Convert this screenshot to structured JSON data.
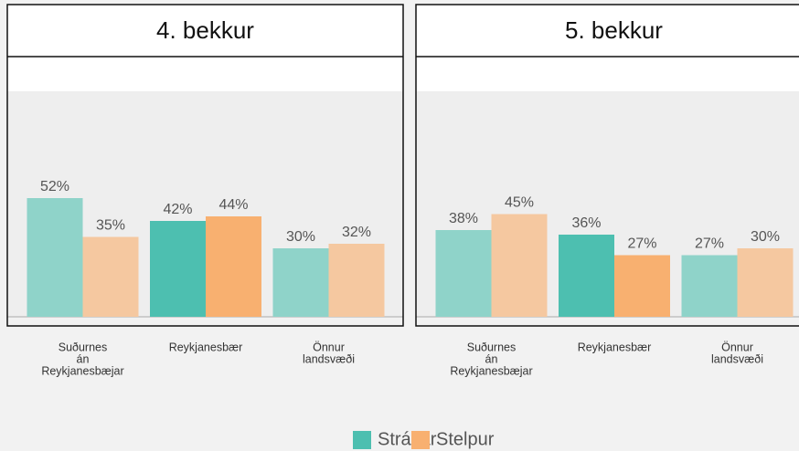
{
  "chart_data": [
    {
      "type": "bar",
      "title": "4. bekkur",
      "categories": [
        [
          "Suðurnes",
          "án",
          "Reykjanesbæjar"
        ],
        [
          "Reykjanesbær"
        ],
        [
          "Önnur",
          "landsvæði"
        ]
      ],
      "series": [
        {
          "name": "Strákar",
          "color": "#4dbfb0",
          "colors": [
            "#8fd3c9",
            "#4dbfb0",
            "#8fd3c9"
          ],
          "values": [
            52,
            42,
            30
          ],
          "value_labels": [
            "52%",
            "42%",
            "30%"
          ]
        },
        {
          "name": "Stelpur",
          "color": "#f8b070",
          "colors": [
            "#f5c8a0",
            "#f8b070",
            "#f5c8a0"
          ],
          "values": [
            35,
            44,
            32
          ],
          "value_labels": [
            "35%",
            "44%",
            "32%"
          ]
        }
      ],
      "ylim": [
        0,
        100
      ]
    },
    {
      "type": "bar",
      "title": "5. bekkur",
      "categories": [
        [
          "Suðurnes",
          "án",
          "Reykjanesbæjar"
        ],
        [
          "Reykjanesbær"
        ],
        [
          "Önnur",
          "landsvæði"
        ]
      ],
      "series": [
        {
          "name": "Strákar",
          "color": "#4dbfb0",
          "colors": [
            "#8fd3c9",
            "#4dbfb0",
            "#8fd3c9"
          ],
          "values": [
            38,
            36,
            27
          ],
          "value_labels": [
            "38%",
            "36%",
            "27%"
          ]
        },
        {
          "name": "Stelpur",
          "color": "#f8b070",
          "colors": [
            "#f5c8a0",
            "#f8b070",
            "#f5c8a0"
          ],
          "values": [
            45,
            27,
            30
          ],
          "value_labels": [
            "45%",
            "27%",
            "30%"
          ]
        }
      ],
      "ylim": [
        0,
        100
      ]
    }
  ]
}
